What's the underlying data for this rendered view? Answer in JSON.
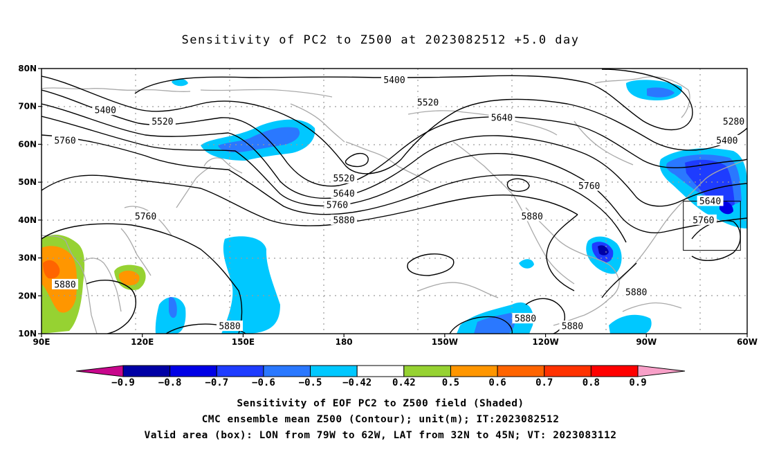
{
  "title": "Sensitivity of PC2 to Z500 at 2023082512 +5.0 day",
  "map": {
    "lon_range_east": [
      90,
      300
    ],
    "lat_range": [
      10,
      80
    ],
    "lat_ticks": [
      "10N",
      "20N",
      "30N",
      "40N",
      "50N",
      "60N",
      "70N",
      "80N"
    ],
    "lon_ticks": [
      "90E",
      "120E",
      "150E",
      "180",
      "150W",
      "120W",
      "90W",
      "60W"
    ],
    "valid_box": {
      "lon": [
        -79,
        -62
      ],
      "lat": [
        32,
        45
      ]
    },
    "contour_labels": [
      {
        "text": "5400",
        "lon": -165,
        "lat": 77
      },
      {
        "text": "5400",
        "lon": 109,
        "lat": 69
      },
      {
        "text": "5520",
        "lon": 126,
        "lat": 66
      },
      {
        "text": "5520",
        "lon": -155,
        "lat": 71
      },
      {
        "text": "5640",
        "lon": -133,
        "lat": 67
      },
      {
        "text": "5280",
        "lon": -64,
        "lat": 66
      },
      {
        "text": "5400",
        "lon": -66,
        "lat": 61
      },
      {
        "text": "5760",
        "lon": 97,
        "lat": 61
      },
      {
        "text": "5520",
        "lon": -180,
        "lat": 51
      },
      {
        "text": "5640",
        "lon": -180,
        "lat": 47
      },
      {
        "text": "5760",
        "lon": -182,
        "lat": 44
      },
      {
        "text": "5880",
        "lon": -180,
        "lat": 40
      },
      {
        "text": "5760",
        "lon": -107,
        "lat": 49
      },
      {
        "text": "5640",
        "lon": -71,
        "lat": 45
      },
      {
        "text": "5760",
        "lon": -73,
        "lat": 40
      },
      {
        "text": "5880",
        "lon": -124,
        "lat": 41
      },
      {
        "text": "5760",
        "lon": 121,
        "lat": 41
      },
      {
        "text": "5880",
        "lon": 97,
        "lat": 23
      },
      {
        "text": "5880",
        "lon": -93,
        "lat": 21
      },
      {
        "text": "5880",
        "lon": 146,
        "lat": 12
      },
      {
        "text": "5880",
        "lon": -126,
        "lat": 14
      },
      {
        "text": "5880",
        "lon": -112,
        "lat": 12
      }
    ],
    "contour_color": "#000000",
    "coast_color": "#a9a9a9",
    "grid_color": "#9a9a9a"
  },
  "colorbar": {
    "labels": [
      "−0.9",
      "−0.8",
      "−0.7",
      "−0.6",
      "−0.5",
      "−0.42",
      "0.42",
      "0.5",
      "0.6",
      "0.7",
      "0.8",
      "0.9"
    ],
    "colors": [
      "#c8078c",
      "#0000a5",
      "#0000e6",
      "#1e3cff",
      "#2a78ff",
      "#00c8ff",
      "#ffffff",
      "#96d232",
      "#ff9600",
      "#ff6400",
      "#ff3200",
      "#ff0000",
      "#f8a0c8"
    ]
  },
  "footer": {
    "line1": "Sensitivity of EOF PC2 to Z500 field (Shaded)",
    "line2": "CMC ensemble mean Z500 (Contour); unit(m); IT:2023082512",
    "line3": "Valid area (box): LON from 79W to 62W, LAT from 32N to 45N; VT: 2023083112"
  }
}
